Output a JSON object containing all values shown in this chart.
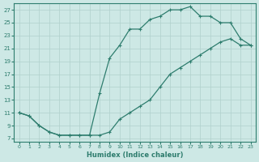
{
  "xlabel": "Humidex (Indice chaleur)",
  "ylabel": "",
  "bg_color": "#cde8e5",
  "line_color": "#2e7d6e",
  "grid_color": "#b0d0cc",
  "xlim": [
    -0.5,
    23.5
  ],
  "ylim": [
    6.5,
    28
  ],
  "xticks": [
    0,
    1,
    2,
    3,
    4,
    5,
    6,
    7,
    8,
    9,
    10,
    11,
    12,
    13,
    14,
    15,
    16,
    17,
    18,
    19,
    20,
    21,
    22,
    23
  ],
  "yticks": [
    7,
    9,
    11,
    13,
    15,
    17,
    19,
    21,
    23,
    25,
    27
  ],
  "upper_line_x": [
    0,
    1,
    2,
    3,
    4,
    5,
    6,
    7,
    8,
    9,
    10,
    11,
    12,
    13,
    14,
    15,
    16,
    17,
    18,
    19,
    20,
    21,
    22,
    23
  ],
  "upper_line_y": [
    11,
    10.5,
    9,
    8,
    7.5,
    7.5,
    7.5,
    7.5,
    14,
    19.5,
    21.5,
    24,
    24,
    25.5,
    26,
    27,
    27,
    27.5,
    26,
    26,
    25,
    25,
    22.5,
    21.5
  ],
  "lower_line_x": [
    0,
    1,
    2,
    3,
    4,
    5,
    6,
    7,
    8,
    9,
    10,
    11,
    12,
    13,
    14,
    15,
    16,
    17,
    18,
    19,
    20,
    21,
    22,
    23
  ],
  "lower_line_y": [
    11,
    10.5,
    9,
    8,
    7.5,
    7.5,
    7.5,
    7.5,
    7.5,
    8,
    10,
    11,
    12,
    13,
    15,
    17,
    18,
    19,
    20,
    21,
    22,
    22.5,
    21.5,
    21.5
  ]
}
